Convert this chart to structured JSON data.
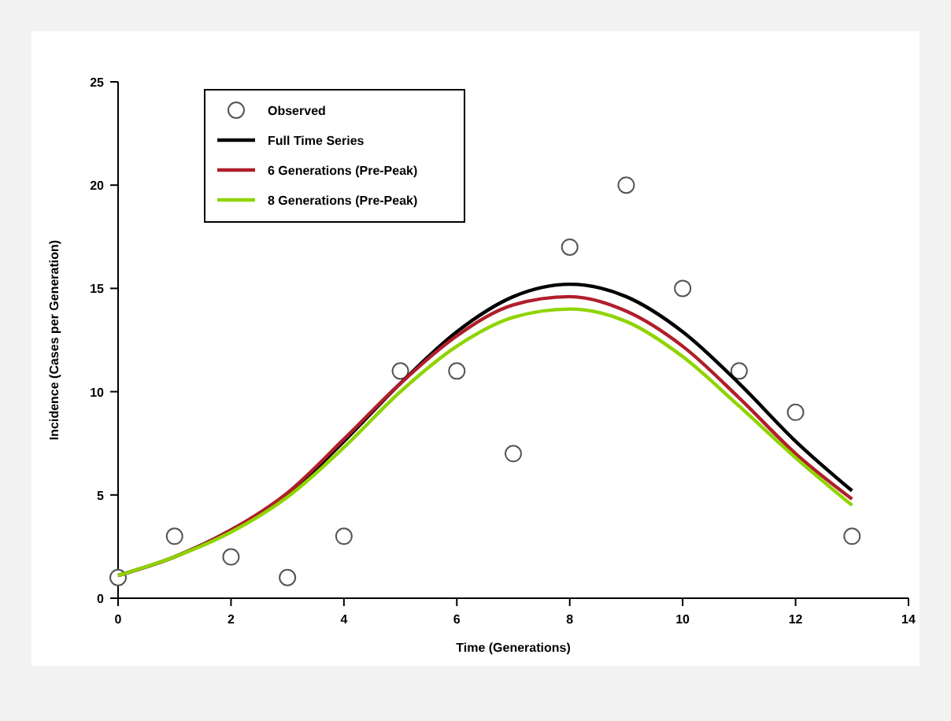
{
  "chart_data": {
    "type": "line",
    "xlabel": "Time (Generations)",
    "ylabel": "Incidence (Cases per Generation)",
    "x": [
      0,
      1,
      2,
      3,
      4,
      5,
      6,
      7,
      8,
      9,
      10,
      11,
      12,
      13
    ],
    "xlim": [
      0,
      14
    ],
    "xticks": [
      0,
      2,
      4,
      6,
      8,
      10,
      12,
      14
    ],
    "ylim": [
      0,
      25
    ],
    "yticks": [
      0,
      5,
      10,
      15,
      20,
      25
    ],
    "grid": false,
    "legend": "top left",
    "line_style": "solid",
    "series": [
      {
        "name": "Observed",
        "type": "scatter",
        "marker": "circle",
        "color": "#555555",
        "values": [
          1,
          3,
          2,
          1,
          3,
          11,
          11,
          7,
          17,
          20,
          15,
          11,
          9,
          3
        ]
      },
      {
        "name": "Full Time Series",
        "color": "#000000",
        "values": [
          1.1,
          2.0,
          3.3,
          5.0,
          7.6,
          10.4,
          12.9,
          14.6,
          15.2,
          14.6,
          12.9,
          10.4,
          7.6,
          5.2
        ]
      },
      {
        "name": "6 Generations (Pre-Peak)",
        "color": "#b01e2a",
        "values": [
          1.1,
          2.0,
          3.3,
          5.1,
          7.7,
          10.4,
          12.7,
          14.2,
          14.6,
          13.9,
          12.2,
          9.7,
          7.0,
          4.8
        ]
      },
      {
        "name": "8 Generations (Pre-Peak)",
        "color": "#8fd400",
        "values": [
          1.1,
          2.0,
          3.2,
          4.9,
          7.3,
          10.0,
          12.2,
          13.6,
          14.0,
          13.4,
          11.7,
          9.3,
          6.8,
          4.5
        ]
      }
    ]
  }
}
